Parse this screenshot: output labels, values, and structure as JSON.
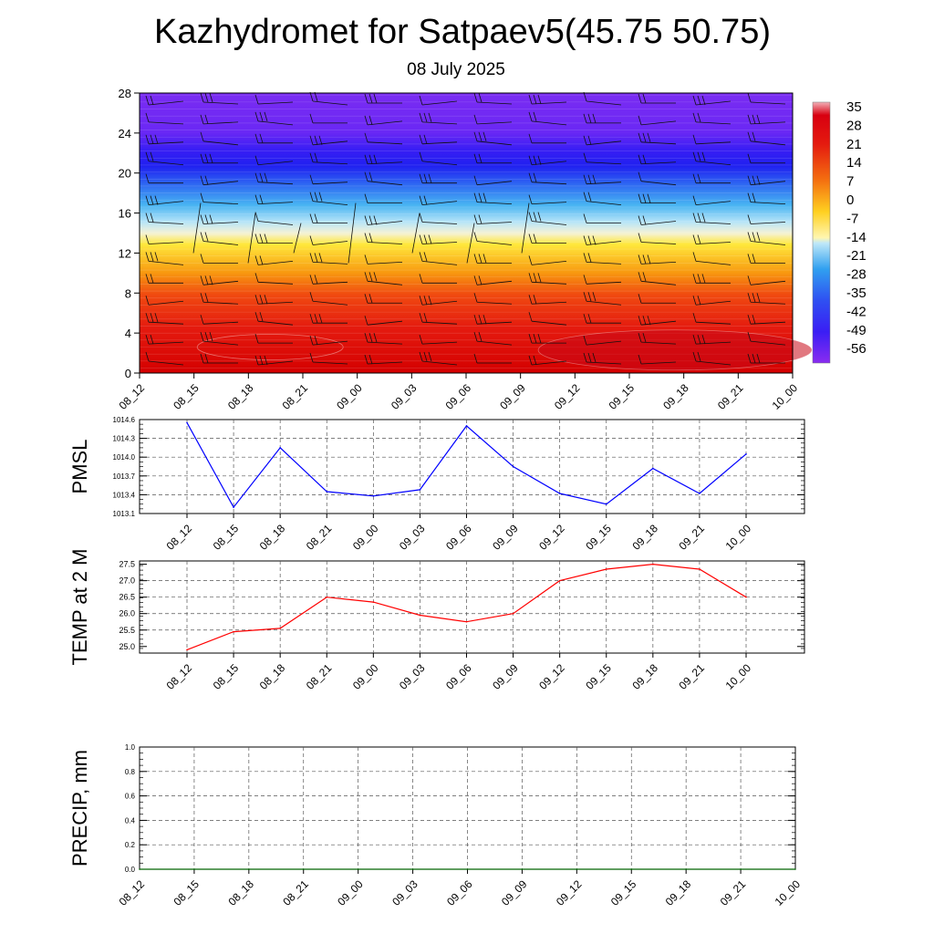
{
  "header": {
    "title": "Kazhydromet for Satpaev5(45.75 50.75)",
    "date": "08 July 2025"
  },
  "colorbar": {
    "labels": [
      "35",
      "28",
      "21",
      "14",
      "7",
      "0",
      "-7",
      "-14",
      "-21",
      "-28",
      "-35",
      "-42",
      "-49",
      "-56"
    ]
  },
  "colors": {
    "pmsl_line": "#0000ff",
    "temp_line": "#ff0000",
    "precip_line": "#006400",
    "grid": "#555555"
  },
  "chart_data": [
    {
      "type": "heatmap",
      "id": "cross-section",
      "title": "",
      "categories": [
        "08_12",
        "08_15",
        "08_18",
        "08_21",
        "09_00",
        "09_03",
        "09_06",
        "09_09",
        "09_12",
        "09_15",
        "09_18",
        "09_21",
        "10_00"
      ],
      "y_ticks": [
        0,
        4,
        8,
        12,
        16,
        20,
        24,
        28
      ],
      "ylim": [
        0,
        28
      ],
      "colorbar_range": [
        -56,
        35
      ],
      "colormap": "red (warm, bottom) through orange, yellow, light blue to violet (cold, top)",
      "overlay": "wind barbs",
      "temperature_profile": [
        {
          "y": 0,
          "value": 30
        },
        {
          "y": 4,
          "value": 28
        },
        {
          "y": 8,
          "value": 18
        },
        {
          "y": 12,
          "value": 0
        },
        {
          "y": 14,
          "value": -10
        },
        {
          "y": 16,
          "value": -25
        },
        {
          "y": 18,
          "value": -38
        },
        {
          "y": 20,
          "value": -50
        },
        {
          "y": 22,
          "value": -56
        },
        {
          "y": 24,
          "value": -52
        },
        {
          "y": 26,
          "value": -54
        },
        {
          "y": 28,
          "value": -55
        }
      ]
    },
    {
      "type": "line",
      "id": "pmsl",
      "ylabel": "PMSL",
      "categories": [
        "08_12",
        "08_15",
        "08_18",
        "08_21",
        "09_00",
        "09_03",
        "09_06",
        "09_09",
        "09_12",
        "09_15",
        "09_18",
        "09_21",
        "10_00"
      ],
      "series": [
        {
          "values": [
            1014.55,
            1013.2,
            1014.15,
            1013.45,
            1013.38,
            1013.48,
            1014.5,
            1013.85,
            1013.42,
            1013.25,
            1013.82,
            1013.42,
            1014.05
          ]
        }
      ],
      "ylim": [
        1013.1,
        1014.6
      ],
      "y_ticks": [
        "1013.1",
        "1013.4",
        "1013.7",
        "1014.0",
        "1014.3",
        "1014.6"
      ],
      "grid": true
    },
    {
      "type": "line",
      "id": "temp",
      "ylabel": "TEMP at 2 M",
      "categories": [
        "08_12",
        "08_15",
        "08_18",
        "08_21",
        "09_00",
        "09_03",
        "09_06",
        "09_09",
        "09_12",
        "09_15",
        "09_18",
        "09_21",
        "10_00"
      ],
      "series": [
        {
          "values": [
            24.9,
            25.45,
            25.55,
            26.5,
            26.35,
            25.95,
            25.75,
            26.0,
            27.0,
            27.35,
            27.5,
            27.35,
            26.5
          ]
        }
      ],
      "ylim": [
        24.8,
        27.6
      ],
      "y_ticks": [
        "25.0",
        "25.5",
        "26.0",
        "26.5",
        "27.0",
        "27.5"
      ],
      "grid": true
    },
    {
      "type": "line",
      "id": "precip",
      "ylabel": "PRECIP, mm",
      "categories": [
        "08_12",
        "08_15",
        "08_18",
        "08_21",
        "09_00",
        "09_03",
        "09_06",
        "09_09",
        "09_12",
        "09_15",
        "09_18",
        "09_21",
        "10_00"
      ],
      "series": [
        {
          "values": [
            0,
            0,
            0,
            0,
            0,
            0,
            0,
            0,
            0,
            0,
            0,
            0,
            0
          ]
        }
      ],
      "ylim": [
        0,
        1
      ],
      "y_ticks": [
        "0.0",
        "0.2",
        "0.4",
        "0.6",
        "0.8",
        "1.0"
      ],
      "grid": true
    }
  ]
}
